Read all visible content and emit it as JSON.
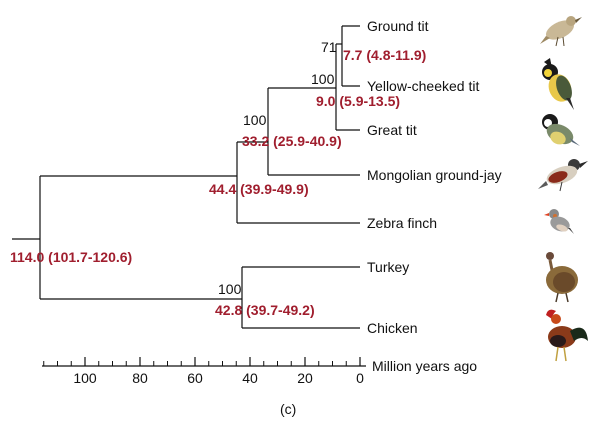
{
  "tree": {
    "taxa": [
      {
        "key": "ground_tit",
        "label": "Ground tit"
      },
      {
        "key": "yellow_cheeked_tit",
        "label": "Yellow-cheeked tit"
      },
      {
        "key": "great_tit",
        "label": "Great tit"
      },
      {
        "key": "mongolian_ground_jay",
        "label": "Mongolian ground-jay"
      },
      {
        "key": "zebra_finch",
        "label": "Zebra finch"
      },
      {
        "key": "turkey",
        "label": "Turkey"
      },
      {
        "key": "chicken",
        "label": "Chicken"
      }
    ],
    "nodes": [
      {
        "key": "root",
        "age_label": "114.0 (101.7-120.6)",
        "support": ""
      },
      {
        "key": "passeriformes",
        "age_label": "44.4 (39.9-49.9)",
        "support": ""
      },
      {
        "key": "galliformes",
        "age_label": "42.8 (39.7-49.2)",
        "support": "100"
      },
      {
        "key": "corvoidea_paridae",
        "age_label": "33.2 (25.9-40.9)",
        "support": "100"
      },
      {
        "key": "paridae",
        "age_label": "9.0 (5.9-13.5)",
        "support": "100"
      },
      {
        "key": "ground_yellow",
        "age_label": "7.7 (4.8-11.9)",
        "support": "71"
      }
    ]
  },
  "axis": {
    "title": "Million years ago",
    "ticks": [
      {
        "value": 100,
        "label": "100"
      },
      {
        "value": 80,
        "label": "80"
      },
      {
        "value": 60,
        "label": "60"
      },
      {
        "value": 40,
        "label": "40"
      },
      {
        "value": 20,
        "label": "20"
      },
      {
        "value": 0,
        "label": "0"
      }
    ]
  },
  "panel_label": "(c)",
  "colors": {
    "age_label": "#a01e2e",
    "line": "#111111"
  }
}
